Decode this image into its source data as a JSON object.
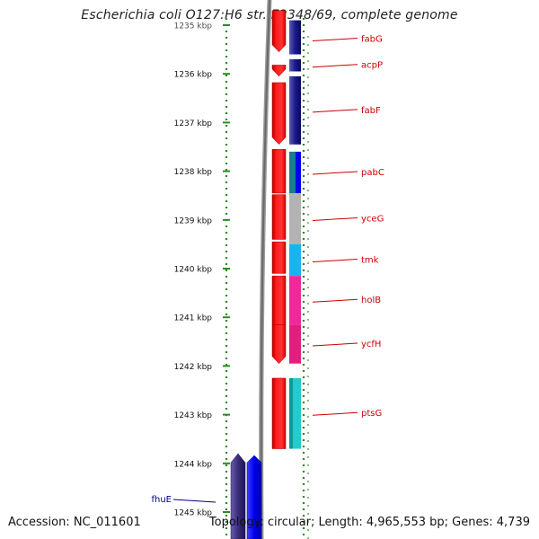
{
  "title": "Escherichia coli O127:H6 str. E2348/69, complete genome",
  "footer": {
    "accession": "Accession: NC_011601",
    "summary": "Topology: circular; Length: 4,965,553 bp; Genes: 4,739"
  },
  "ruler": {
    "ticks": [
      {
        "label": "1235 kbp",
        "kbp": 1235
      },
      {
        "label": "1236 kbp",
        "kbp": 1236
      },
      {
        "label": "1237 kbp",
        "kbp": 1237
      },
      {
        "label": "1238 kbp",
        "kbp": 1238
      },
      {
        "label": "1239 kbp",
        "kbp": 1239
      },
      {
        "label": "1240 kbp",
        "kbp": 1240
      },
      {
        "label": "1241 kbp",
        "kbp": 1241
      },
      {
        "label": "1242 kbp",
        "kbp": 1242
      },
      {
        "label": "1243 kbp",
        "kbp": 1243
      },
      {
        "label": "1244 kbp",
        "kbp": 1244
      },
      {
        "label": "1245 kbp",
        "kbp": 1245
      }
    ]
  },
  "genes": [
    {
      "name": "fabG",
      "start_kbp": 1234.9,
      "end_kbp": 1235.6,
      "color": "#1a1a8c"
    },
    {
      "name": "acpP",
      "start_kbp": 1235.7,
      "end_kbp": 1235.95,
      "color": "#2a2aa0"
    },
    {
      "name": "fabF",
      "start_kbp": 1236.05,
      "end_kbp": 1237.45,
      "color": "#1a1a8c"
    },
    {
      "name": "pabC",
      "start_kbp": 1237.6,
      "end_kbp": 1238.45,
      "color": "#2b6fa0"
    },
    {
      "name": "yceG",
      "start_kbp": 1238.45,
      "end_kbp": 1239.5,
      "color": "#b3b3b3"
    },
    {
      "name": "tmk",
      "start_kbp": 1239.5,
      "end_kbp": 1240.15,
      "color": "#1ab3ee"
    },
    {
      "name": "holB",
      "start_kbp": 1240.15,
      "end_kbp": 1241.15,
      "color": "#ee2a9a"
    },
    {
      "name": "ycfH",
      "start_kbp": 1241.15,
      "end_kbp": 1241.95,
      "color": "#e0207f"
    },
    {
      "name": "ptsG",
      "start_kbp": 1242.25,
      "end_kbp": 1243.7,
      "color": "#22cccc"
    },
    {
      "name": "fhuE",
      "start_kbp": 1243.8,
      "end_kbp": 1245.6,
      "color": "#3a2d7a"
    }
  ],
  "colors": {
    "forward_strand": "#ff0000",
    "label_text": "#cc0000",
    "fhuE_label": "#000080",
    "backbone": "#808080",
    "dots": "#2e8b22",
    "fhuE_blue": "#0000ff"
  }
}
